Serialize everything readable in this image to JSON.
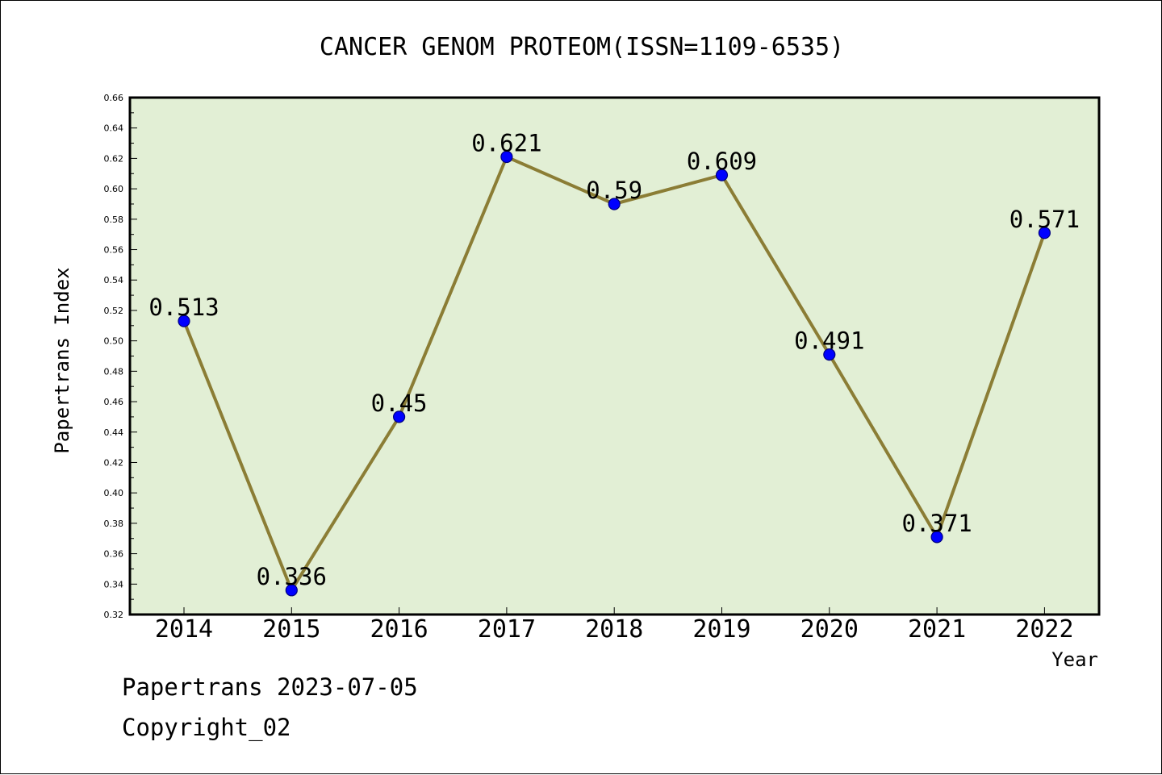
{
  "chart_data": {
    "type": "line",
    "title": "CANCER GENOM PROTEOM(ISSN=1109-6535)",
    "xlabel": "Year",
    "ylabel": "Papertrans Index",
    "categories": [
      "2014",
      "2015",
      "2016",
      "2017",
      "2018",
      "2019",
      "2020",
      "2021",
      "2022"
    ],
    "series": [
      {
        "values": [
          0.513,
          0.336,
          0.45,
          0.621,
          0.59,
          0.609,
          0.491,
          0.371,
          0.571
        ],
        "data_labels": [
          "0.513",
          "0.336",
          "0.45",
          "0.621",
          "0.59",
          "0.609",
          "0.491",
          "0.371",
          "0.571"
        ]
      }
    ],
    "ylim": [
      0.32,
      0.66
    ],
    "ytick_labels": [
      "0.32",
      "0.34",
      "0.36",
      "0.38",
      "0.40",
      "0.42",
      "0.44",
      "0.46",
      "0.48",
      "0.50",
      "0.52",
      "0.54",
      "0.56",
      "0.58",
      "0.60",
      "0.62",
      "0.64",
      "0.66"
    ],
    "grid": false,
    "colors": {
      "plot_background": "#e2efd5",
      "line": "#8b7d35",
      "marker_fill": "#0000ff",
      "marker_edge": "#000080",
      "axis": "#000000"
    }
  },
  "footer": {
    "line1": "Papertrans 2023-07-05",
    "line2": "Copyright_02"
  }
}
